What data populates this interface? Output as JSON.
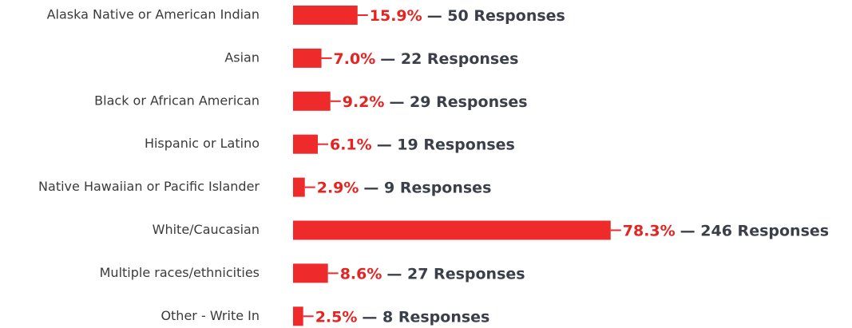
{
  "chart_data": {
    "type": "bar",
    "orientation": "horizontal",
    "color": "#ee2a2a",
    "categories": [
      "Alaska Native or American Indian",
      "Asian",
      "Black or African American",
      "Hispanic or Latino",
      "Native Hawaiian or Pacific Islander",
      "White/Caucasian",
      "Multiple races/ethnicities",
      "Other - Write In"
    ],
    "values": [
      15.9,
      7.0,
      9.2,
      6.1,
      2.9,
      78.3,
      8.6,
      2.5
    ],
    "value_labels": [
      "15.9%",
      "7.0%",
      "9.2%",
      "6.1%",
      "2.9%",
      "78.3%",
      "8.6%",
      "2.5%"
    ],
    "response_labels": [
      "— 50 Responses",
      "— 22 Responses",
      "— 29 Responses",
      "— 19 Responses",
      "— 9 Responses",
      "— 246 Responses",
      "— 27 Responses",
      "— 8 Responses"
    ]
  }
}
